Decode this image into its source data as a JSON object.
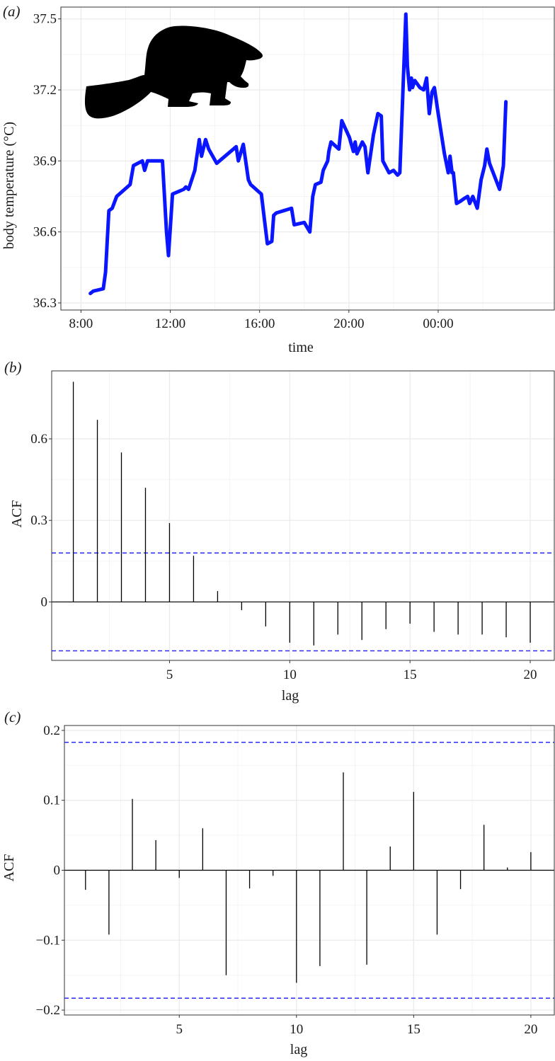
{
  "colors": {
    "line": "#0a16ff",
    "ci_line": "#2a2aff",
    "spike": "#000000",
    "grid": "#ebebeb",
    "grid_minor": "#f4f4f4",
    "panel_border": "#333333"
  },
  "panels": {
    "a": {
      "label": "(a)",
      "silhouette_icon": "beaver-icon"
    },
    "b": {
      "label": "(b)"
    },
    "c": {
      "label": "(c)"
    }
  },
  "chart_data": [
    {
      "type": "line",
      "xlabel": "time",
      "ylabel": "body temperature (°C)",
      "x_unit": "hours since 8:00 (day 1)",
      "xticks": [
        {
          "value": 0,
          "label": "8:00"
        },
        {
          "value": 4,
          "label": "12:00"
        },
        {
          "value": 8,
          "label": "16:00"
        },
        {
          "value": 12,
          "label": "20:00"
        },
        {
          "value": 16,
          "label": "00:00"
        }
      ],
      "yticks": [
        {
          "value": 36.3,
          "label": "36.3"
        },
        {
          "value": 36.6,
          "label": "36.6"
        },
        {
          "value": 36.9,
          "label": "36.9"
        },
        {
          "value": 37.2,
          "label": "37.2"
        },
        {
          "value": 37.5,
          "label": "37.5"
        }
      ],
      "xlim": [
        -0.9,
        21.2
      ],
      "ylim": [
        36.27,
        37.55
      ],
      "grid": true,
      "series": [
        {
          "x": [
            0.42,
            0.55,
            1.0,
            1.1,
            1.25,
            1.4,
            1.6,
            2.2,
            2.35,
            2.75,
            2.85,
            2.98,
            3.65,
            3.83,
            3.92,
            4.1,
            4.35,
            4.6,
            4.7,
            4.82,
            5.1,
            5.3,
            5.4,
            5.58,
            5.72,
            6.08,
            6.95,
            7.05,
            7.27,
            7.5,
            7.6,
            8.08,
            8.22,
            8.35,
            8.55,
            8.63,
            8.75,
            9.43,
            9.55,
            10.0,
            10.25,
            10.38,
            10.5,
            10.75,
            10.85,
            11.05,
            11.1,
            11.2,
            11.55,
            11.68,
            12.02,
            12.2,
            12.28,
            12.36,
            12.6,
            12.72,
            12.85,
            13.1,
            13.3,
            13.45,
            13.52,
            13.8,
            14.0,
            14.18,
            14.28,
            14.55,
            14.62,
            14.72,
            14.8,
            14.85,
            14.95,
            15.18,
            15.35,
            15.48,
            15.6,
            15.72,
            15.83,
            16.0,
            16.28,
            16.45,
            16.53,
            16.62,
            16.68,
            16.82,
            17.0,
            17.15,
            17.32,
            17.41,
            17.55,
            17.75,
            17.92,
            18.08,
            18.18,
            18.3,
            18.75,
            18.92,
            19.03
          ],
          "y": [
            36.34,
            36.35,
            36.36,
            36.43,
            36.69,
            36.7,
            36.75,
            36.8,
            36.88,
            36.9,
            36.86,
            36.9,
            36.9,
            36.6,
            36.5,
            36.76,
            36.77,
            36.78,
            36.79,
            36.78,
            36.86,
            36.99,
            36.92,
            36.99,
            36.95,
            36.89,
            36.96,
            36.9,
            36.97,
            36.82,
            36.8,
            36.76,
            36.65,
            36.55,
            36.56,
            36.67,
            36.68,
            36.7,
            36.63,
            36.64,
            36.6,
            36.75,
            36.8,
            36.81,
            36.86,
            36.9,
            36.94,
            36.98,
            36.95,
            37.07,
            37.0,
            36.94,
            36.98,
            36.93,
            36.98,
            36.96,
            36.85,
            37.01,
            37.1,
            37.09,
            36.9,
            36.85,
            36.86,
            36.84,
            36.85,
            37.52,
            37.3,
            37.2,
            37.25,
            37.21,
            37.24,
            37.21,
            37.2,
            37.25,
            37.1,
            37.19,
            37.21,
            37.1,
            36.93,
            36.85,
            36.92,
            36.85,
            36.85,
            36.72,
            36.73,
            36.74,
            36.75,
            36.72,
            36.75,
            36.7,
            36.82,
            36.88,
            36.95,
            36.89,
            36.78,
            36.88,
            37.15
          ]
        }
      ]
    },
    {
      "type": "bar",
      "xlabel": "lag",
      "ylabel": "ACF",
      "lags": [
        1,
        2,
        3,
        4,
        5,
        6,
        7,
        8,
        9,
        10,
        11,
        12,
        13,
        14,
        15,
        16,
        17,
        18,
        19,
        20
      ],
      "values": [
        0.81,
        0.67,
        0.55,
        0.42,
        0.29,
        0.17,
        0.04,
        -0.03,
        -0.09,
        -0.15,
        -0.16,
        -0.12,
        -0.14,
        -0.1,
        -0.08,
        -0.11,
        -0.12,
        -0.12,
        -0.13,
        -0.15
      ],
      "ci": 0.18,
      "xticks": [
        5,
        10,
        15,
        20
      ],
      "yticks": [
        {
          "value": 0,
          "label": "0"
        },
        {
          "value": 0.3,
          "label": "0.3"
        },
        {
          "value": 0.6,
          "label": "0.6"
        }
      ],
      "xlim": [
        0.1,
        21.0
      ],
      "ylim": [
        -0.215,
        0.85
      ],
      "grid": true
    },
    {
      "type": "bar",
      "xlabel": "lag",
      "ylabel": "ACF",
      "lags": [
        1,
        2,
        3,
        4,
        5,
        6,
        7,
        8,
        9,
        10,
        11,
        12,
        13,
        14,
        15,
        16,
        17,
        18,
        19,
        20
      ],
      "values": [
        -0.028,
        -0.092,
        0.102,
        0.043,
        -0.011,
        0.06,
        -0.15,
        -0.026,
        -0.008,
        -0.161,
        -0.137,
        0.14,
        -0.135,
        0.034,
        0.112,
        -0.092,
        -0.027,
        0.065,
        0.004,
        0.026
      ],
      "ci": 0.183,
      "xticks": [
        5,
        10,
        15,
        20
      ],
      "yticks": [
        {
          "value": -0.2,
          "label": "−0.2"
        },
        {
          "value": -0.1,
          "label": "−0.1"
        },
        {
          "value": 0,
          "label": "0"
        },
        {
          "value": 0.1,
          "label": "0.1"
        },
        {
          "value": 0.2,
          "label": "0.2"
        }
      ],
      "xlim": [
        0.1,
        21.0
      ],
      "ylim": [
        -0.207,
        0.207
      ],
      "grid": true
    }
  ]
}
